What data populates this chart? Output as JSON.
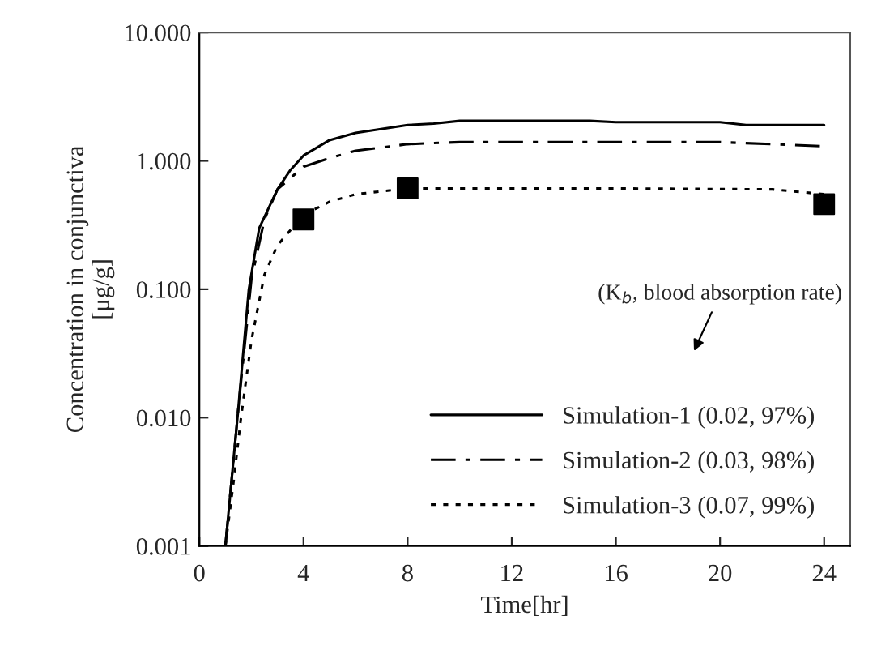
{
  "chart_data": {
    "type": "line",
    "xlabel": "Time[hr]",
    "ylabel": "Concentration in conjunctiva\n[μg/g]",
    "annotations": [
      "(K$_{b}$, blood absorption rate)"
    ],
    "xlim": [
      0,
      25
    ],
    "xticks": [
      0,
      4,
      8,
      12,
      16,
      20,
      24
    ],
    "ylim": [
      0.001,
      10
    ],
    "log": "y",
    "yticks": [
      {
        "value": 0.001,
        "label": "0.001"
      },
      {
        "value": 0.01,
        "label": "0.010"
      },
      {
        "value": 0.1,
        "label": "0.100"
      },
      {
        "value": 1,
        "label": "1.000"
      },
      {
        "value": 10,
        "label": "10.000"
      }
    ],
    "grid": false,
    "legend": "bottom right",
    "series": [
      {
        "type": "scatter",
        "marker": "square",
        "color": "#000000",
        "x": [
          4,
          8,
          24
        ],
        "values": [
          0.35,
          0.61,
          0.46
        ]
      },
      {
        "name": "Simulation-1 (0.02, 97%)",
        "line_style": "solid",
        "color": "#000000",
        "x": [
          1,
          1.5,
          1.9,
          2.3,
          3,
          3.5,
          4,
          5,
          6,
          8,
          9,
          10,
          15,
          16,
          20,
          21,
          24
        ],
        "values": [
          0.001,
          0.012,
          0.1,
          0.3,
          0.6,
          0.85,
          1.1,
          1.45,
          1.65,
          1.9,
          1.95,
          2.05,
          2.05,
          2.0,
          2.0,
          1.9,
          1.9
        ]
      },
      {
        "name": "Simulation-2 (0.03, 98%)",
        "line_style": "dashdot",
        "color": "#000000",
        "x": [
          1,
          1.5,
          2,
          2.5,
          3,
          4,
          5,
          6,
          8,
          10,
          20,
          24
        ],
        "values": [
          0.001,
          0.012,
          0.12,
          0.35,
          0.6,
          0.9,
          1.05,
          1.2,
          1.35,
          1.4,
          1.4,
          1.3
        ]
      },
      {
        "name": "Simulation-3 (0.07, 99%)",
        "line_style": "dotted",
        "color": "#000000",
        "x": [
          1,
          1.3,
          1.6,
          2,
          2.5,
          3,
          4,
          5,
          6,
          8,
          16,
          22,
          24
        ],
        "values": [
          0.001,
          0.003,
          0.01,
          0.04,
          0.13,
          0.22,
          0.38,
          0.48,
          0.55,
          0.61,
          0.61,
          0.6,
          0.55
        ]
      }
    ]
  }
}
